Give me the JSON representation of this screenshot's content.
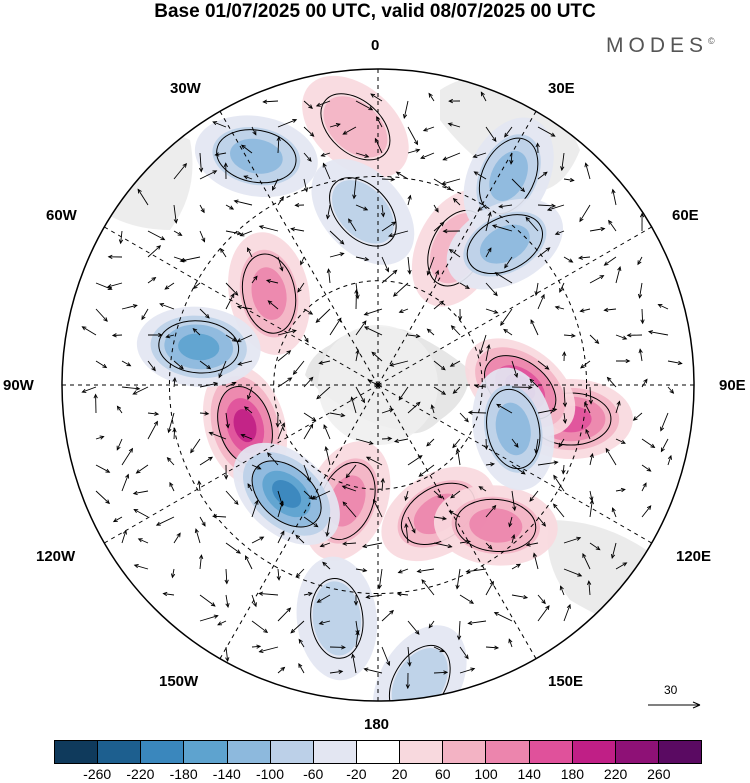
{
  "title": "Base 01/07/2025 00 UTC, valid 08/07/2025 00 UTC",
  "brand": "MODES",
  "brand_mark": "©",
  "lon_labels": {
    "deg0": "0",
    "w30": "30W",
    "e30": "30E",
    "w60": "60W",
    "e60": "60E",
    "w90": "90W",
    "e90": "90E",
    "w120": "120W",
    "e120": "120E",
    "w150": "150W",
    "e150": "150E",
    "deg180": "180"
  },
  "reference_vector": "30",
  "colorbar": {
    "ticks": [
      "-260",
      "-220",
      "-180",
      "-140",
      "-100",
      "-60",
      "-20",
      "20",
      "60",
      "100",
      "140",
      "180",
      "220",
      "260"
    ],
    "colors": [
      "#0f3a5c",
      "#1d5f8f",
      "#3a87bd",
      "#5ea3cf",
      "#8db9dd",
      "#bcd0e8",
      "#e3e6f2",
      "#ffffff",
      "#f8d9de",
      "#f3b3c4",
      "#ec85ad",
      "#e0519b",
      "#c01f86",
      "#8e1176",
      "#5a0a62"
    ]
  },
  "map": {
    "projection": "south-polar-stereographic",
    "land_color": "#e6e6e6",
    "highs": [
      {
        "lon_deg": 100,
        "colat_frac": 0.62,
        "level": 4
      },
      {
        "lon_deg": 91,
        "colat_frac": 0.45,
        "level": 5
      },
      {
        "lon_deg": -107,
        "colat_frac": 0.44,
        "level": 5
      },
      {
        "lon_deg": -165,
        "colat_frac": 0.38,
        "level": 3
      },
      {
        "lon_deg": 155,
        "colat_frac": 0.45,
        "level": 3
      },
      {
        "lon_deg": 140,
        "colat_frac": 0.58,
        "level": 3
      },
      {
        "lon_deg": -5,
        "colat_frac": 0.82,
        "level": 2
      },
      {
        "lon_deg": -50,
        "colat_frac": 0.45,
        "level": 3
      },
      {
        "lon_deg": 30,
        "colat_frac": 0.5,
        "level": 2
      }
    ],
    "lows": [
      {
        "lon_deg": -78,
        "colat_frac": 0.58,
        "level": 4
      },
      {
        "lon_deg": -140,
        "colat_frac": 0.45,
        "level": 5
      },
      {
        "lon_deg": 108,
        "colat_frac": 0.45,
        "level": 3
      },
      {
        "lon_deg": 32,
        "colat_frac": 0.78,
        "level": 3
      },
      {
        "lon_deg": 42,
        "colat_frac": 0.6,
        "level": 3
      },
      {
        "lon_deg": -28,
        "colat_frac": 0.82,
        "level": 3
      },
      {
        "lon_deg": -5,
        "colat_frac": 0.55,
        "level": 2
      },
      {
        "lon_deg": -170,
        "colat_frac": 0.75,
        "level": 2
      },
      {
        "lon_deg": 172,
        "colat_frac": 0.95,
        "level": 2
      }
    ]
  }
}
